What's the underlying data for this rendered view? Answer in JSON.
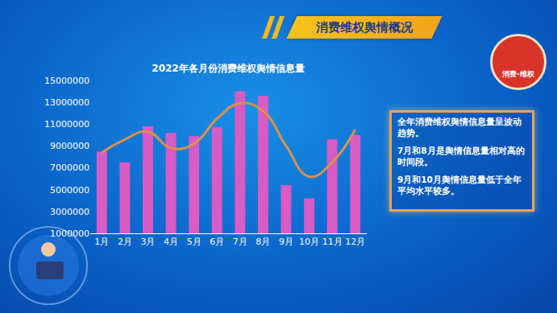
{
  "banner_title": "消费维权舆情概况",
  "logo_text": "消费·维权",
  "notes": [
    "全年消费维权舆情信息量呈波动趋势。",
    "7月和8月是舆情信息量相对高的时间段。",
    "9月和10月舆情信息量低于全年平均水平较多。"
  ],
  "chart_data": {
    "type": "bar",
    "title": "2022年各月份消费维权舆情信息量",
    "categories": [
      "1月",
      "2月",
      "3月",
      "4月",
      "5月",
      "6月",
      "7月",
      "8月",
      "9月",
      "10月",
      "11月",
      "12月"
    ],
    "series": [
      {
        "type": "bar",
        "color": "#d95bc6",
        "values": [
          8500000,
          7500000,
          10800000,
          10200000,
          9900000,
          10700000,
          14000000,
          13600000,
          5400000,
          4200000,
          9600000,
          10000000
        ]
      },
      {
        "type": "line",
        "color": "#d9914a",
        "line_style": "spline",
        "values": [
          8400000,
          9600000,
          10300000,
          8800000,
          9200000,
          11500000,
          12900000,
          12200000,
          9000000,
          6200000,
          7500000,
          10500000
        ]
      }
    ],
    "ylim": [
      1000000,
      15000000
    ],
    "yticks": [
      1000000,
      3000000,
      5000000,
      7000000,
      9000000,
      11000000,
      13000000,
      15000000
    ],
    "grid": false
  }
}
